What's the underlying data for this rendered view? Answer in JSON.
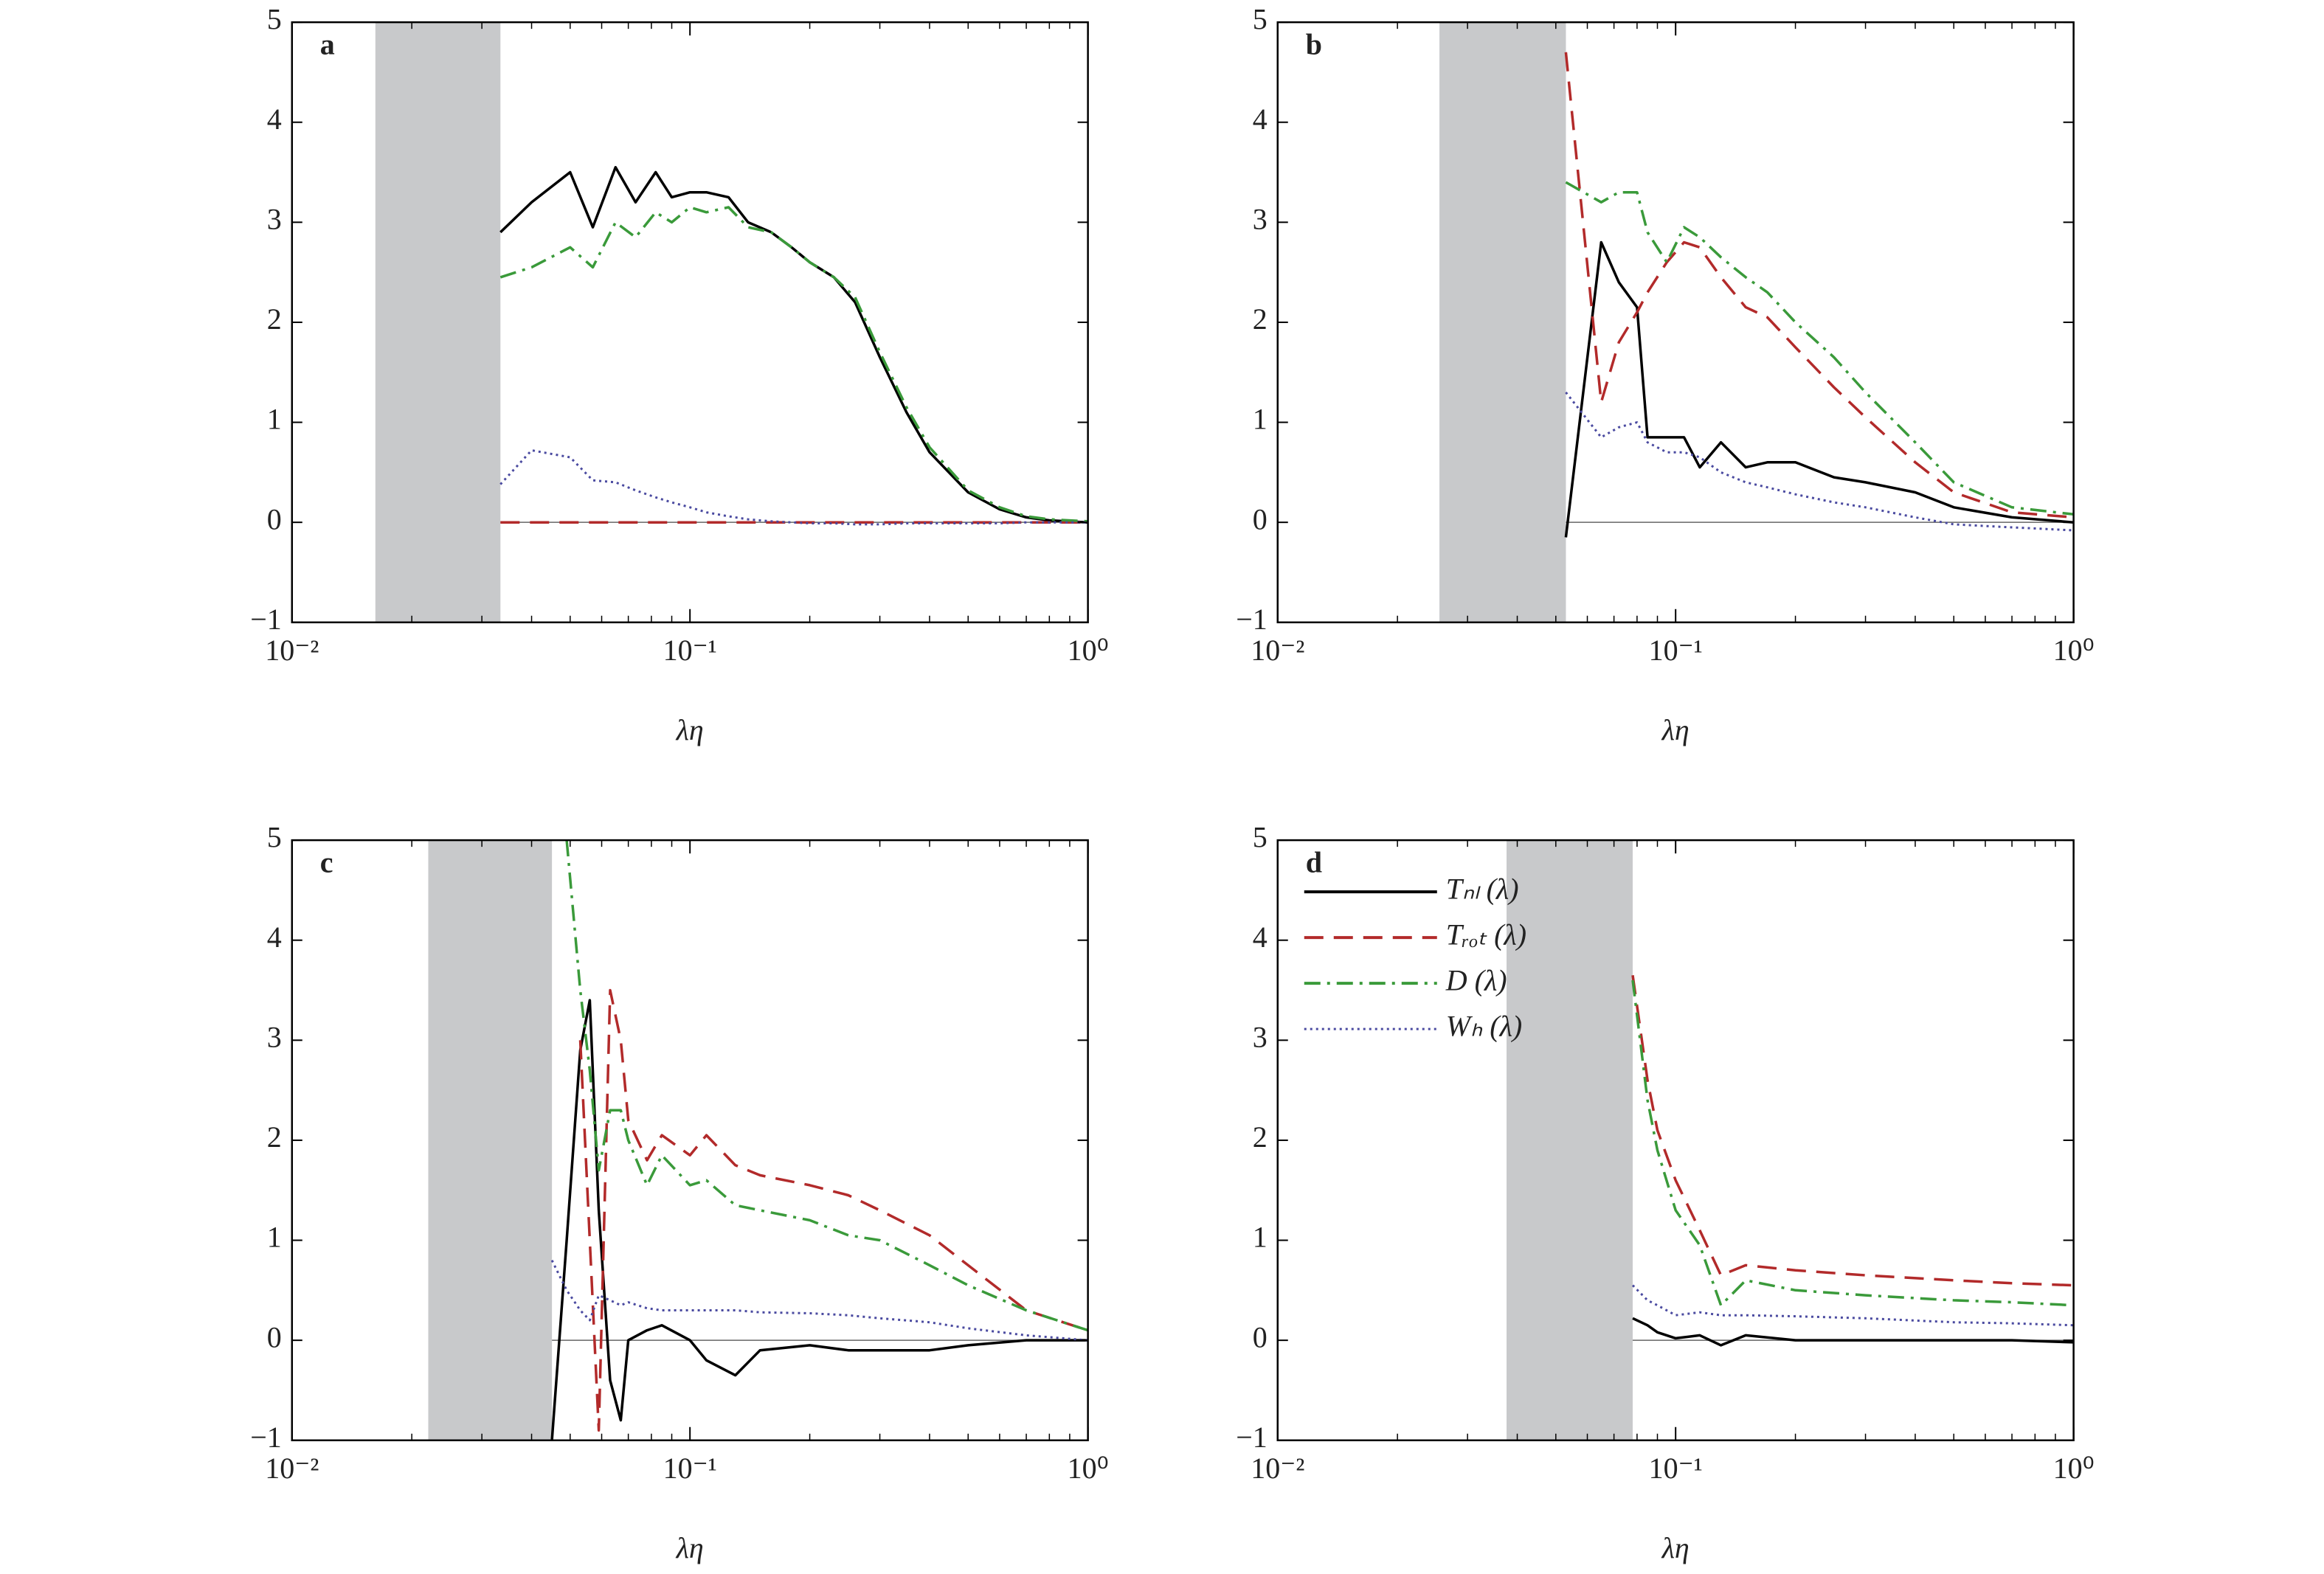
{
  "chart_data": [
    {
      "type": "line",
      "label": "a",
      "xlabel": "λη",
      "xscale": "log",
      "xlim": [
        0.01,
        1
      ],
      "ylim": [
        -1,
        5
      ],
      "xticks": [
        {
          "value": 0.01,
          "label": "10⁻²"
        },
        {
          "value": 0.1,
          "label": "10⁻¹"
        },
        {
          "value": 1,
          "label": "10⁰"
        }
      ],
      "yticks": [
        {
          "value": -1,
          "label": "−1"
        },
        0,
        1,
        2,
        3,
        4,
        5
      ],
      "shade": [
        0.0162,
        0.0334
      ],
      "hline": 0,
      "x": [
        0.0334,
        0.04,
        0.05,
        0.057,
        0.065,
        0.073,
        0.082,
        0.09,
        0.1,
        0.11,
        0.125,
        0.14,
        0.16,
        0.18,
        0.2,
        0.23,
        0.26,
        0.3,
        0.35,
        0.4,
        0.5,
        0.6,
        0.7,
        0.8,
        1.0
      ],
      "series": [
        {
          "color": "#000000",
          "style": "solid",
          "values": [
            2.9,
            3.2,
            3.5,
            2.95,
            3.55,
            3.2,
            3.5,
            3.25,
            3.3,
            3.3,
            3.25,
            3.0,
            2.9,
            2.75,
            2.6,
            2.45,
            2.2,
            1.65,
            1.1,
            0.7,
            0.3,
            0.13,
            0.05,
            0.02,
            0.0
          ]
        },
        {
          "color": "#b22a2a",
          "style": "dashed",
          "values": [
            0,
            0,
            0,
            0,
            0,
            0,
            0,
            0,
            0,
            0,
            0,
            0,
            0,
            0,
            0,
            0,
            0,
            0,
            0,
            0,
            0,
            0,
            0,
            0,
            0
          ]
        },
        {
          "color": "#3a9a3a",
          "style": "dashdot",
          "values": [
            2.45,
            2.55,
            2.75,
            2.55,
            3.0,
            2.85,
            3.1,
            3.0,
            3.15,
            3.1,
            3.15,
            2.95,
            2.9,
            2.75,
            2.6,
            2.45,
            2.25,
            1.7,
            1.15,
            0.75,
            0.32,
            0.15,
            0.06,
            0.03,
            0.01
          ]
        },
        {
          "color": "#4a4aa0",
          "style": "dotted",
          "values": [
            0.38,
            0.72,
            0.65,
            0.42,
            0.4,
            0.32,
            0.25,
            0.2,
            0.15,
            0.1,
            0.06,
            0.03,
            0.01,
            0,
            -0.01,
            -0.01,
            -0.02,
            -0.02,
            -0.01,
            -0.01,
            -0.01,
            -0.01,
            0,
            0,
            0
          ]
        }
      ]
    },
    {
      "type": "line",
      "label": "b",
      "xlabel": "λη",
      "xscale": "log",
      "xlim": [
        0.01,
        1
      ],
      "ylim": [
        -1,
        5
      ],
      "xticks": [
        {
          "value": 0.01,
          "label": "10⁻²"
        },
        {
          "value": 0.1,
          "label": "10⁻¹"
        },
        {
          "value": 1,
          "label": "10⁰"
        }
      ],
      "yticks": [
        {
          "value": -1,
          "label": "−1"
        },
        0,
        1,
        2,
        3,
        4,
        5
      ],
      "shade": [
        0.0255,
        0.053
      ],
      "hline": 0,
      "x": [
        0.053,
        0.065,
        0.072,
        0.08,
        0.085,
        0.095,
        0.105,
        0.115,
        0.13,
        0.15,
        0.17,
        0.2,
        0.25,
        0.3,
        0.4,
        0.5,
        0.7,
        1.0
      ],
      "series": [
        {
          "color": "#000000",
          "style": "solid",
          "values": [
            -0.15,
            2.8,
            2.4,
            2.15,
            0.85,
            0.85,
            0.85,
            0.55,
            0.8,
            0.55,
            0.6,
            0.6,
            0.45,
            0.4,
            0.3,
            0.15,
            0.05,
            0.0
          ]
        },
        {
          "color": "#b22a2a",
          "style": "dashed",
          "values": [
            4.7,
            1.2,
            1.8,
            2.1,
            2.3,
            2.6,
            2.8,
            2.75,
            2.45,
            2.15,
            2.05,
            1.75,
            1.35,
            1.05,
            0.6,
            0.3,
            0.1,
            0.05
          ]
        },
        {
          "color": "#3a9a3a",
          "style": "dashdot",
          "values": [
            3.4,
            3.2,
            3.3,
            3.3,
            2.9,
            2.6,
            2.95,
            2.85,
            2.65,
            2.45,
            2.3,
            2.0,
            1.65,
            1.3,
            0.8,
            0.4,
            0.15,
            0.08
          ]
        },
        {
          "color": "#4a4aa0",
          "style": "dotted",
          "values": [
            1.3,
            0.85,
            0.95,
            1.0,
            0.8,
            0.7,
            0.7,
            0.65,
            0.5,
            0.4,
            0.35,
            0.28,
            0.2,
            0.15,
            0.05,
            -0.02,
            -0.05,
            -0.08
          ]
        }
      ]
    },
    {
      "type": "line",
      "label": "c",
      "xlabel": "λη",
      "xscale": "log",
      "xlim": [
        0.01,
        1
      ],
      "ylim": [
        -1,
        5
      ],
      "xticks": [
        {
          "value": 0.01,
          "label": "10⁻²"
        },
        {
          "value": 0.1,
          "label": "10⁻¹"
        },
        {
          "value": 1,
          "label": "10⁰"
        }
      ],
      "yticks": [
        {
          "value": -1,
          "label": "−1"
        },
        0,
        1,
        2,
        3,
        4,
        5
      ],
      "shade": [
        0.022,
        0.045
      ],
      "hline": 0,
      "x": [
        0.045,
        0.049,
        0.053,
        0.056,
        0.059,
        0.063,
        0.067,
        0.07,
        0.078,
        0.085,
        0.1,
        0.11,
        0.13,
        0.15,
        0.2,
        0.25,
        0.3,
        0.4,
        0.5,
        0.7,
        1.0
      ],
      "series": [
        {
          "color": "#000000",
          "style": "solid",
          "values": [
            -1.0,
            1.0,
            2.9,
            3.4,
            1.3,
            -0.4,
            -0.8,
            0.0,
            0.1,
            0.15,
            0.0,
            -0.2,
            -0.35,
            -0.1,
            -0.05,
            -0.1,
            -0.1,
            -0.1,
            -0.05,
            0.0,
            0.0
          ]
        },
        {
          "color": "#b22a2a",
          "style": "dashed",
          "values": [
            null,
            null,
            3.0,
            1.0,
            -0.9,
            3.5,
            3.0,
            2.2,
            1.8,
            2.05,
            1.85,
            2.05,
            1.75,
            1.65,
            1.55,
            1.45,
            1.3,
            1.05,
            0.75,
            0.3,
            0.1
          ]
        },
        {
          "color": "#3a9a3a",
          "style": "dashdot",
          "values": [
            null,
            5.0,
            3.5,
            2.7,
            1.7,
            2.3,
            2.3,
            2.0,
            1.55,
            1.85,
            1.55,
            1.6,
            1.35,
            1.3,
            1.2,
            1.05,
            1.0,
            0.75,
            0.55,
            0.3,
            0.1
          ]
        },
        {
          "color": "#4a4aa0",
          "style": "dotted",
          "values": [
            0.8,
            0.5,
            0.3,
            0.2,
            0.45,
            0.4,
            0.35,
            0.38,
            0.32,
            0.3,
            0.3,
            0.3,
            0.3,
            0.28,
            0.27,
            0.25,
            0.22,
            0.18,
            0.12,
            0.05,
            0.0
          ]
        }
      ]
    },
    {
      "type": "line",
      "label": "d",
      "xlabel": "λη",
      "xscale": "log",
      "xlim": [
        0.01,
        1
      ],
      "ylim": [
        -1,
        5
      ],
      "xticks": [
        {
          "value": 0.01,
          "label": "10⁻²"
        },
        {
          "value": 0.1,
          "label": "10⁻¹"
        },
        {
          "value": 1,
          "label": "10⁰"
        }
      ],
      "yticks": [
        {
          "value": -1,
          "label": "−1"
        },
        0,
        1,
        2,
        3,
        4,
        5
      ],
      "shade": [
        0.0376,
        0.078
      ],
      "hline": 0,
      "legend": "upper left",
      "x": [
        0.078,
        0.085,
        0.09,
        0.1,
        0.115,
        0.13,
        0.15,
        0.2,
        0.3,
        0.5,
        0.7,
        1.0
      ],
      "series": [
        {
          "name": "Tₙₗ (λ)",
          "color": "#000000",
          "style": "solid",
          "values": [
            0.22,
            0.15,
            0.08,
            0.02,
            0.05,
            -0.05,
            0.05,
            0.0,
            0.0,
            0.0,
            0.0,
            -0.02
          ]
        },
        {
          "name": "Tᵣₒₜ (λ)",
          "color": "#b22a2a",
          "style": "dashed",
          "values": [
            3.65,
            2.6,
            2.1,
            1.6,
            1.1,
            0.65,
            0.75,
            0.7,
            0.65,
            0.6,
            0.57,
            0.55
          ]
        },
        {
          "name": "D (λ)",
          "color": "#3a9a3a",
          "style": "dashdot",
          "values": [
            3.6,
            2.4,
            1.9,
            1.3,
            0.95,
            0.35,
            0.6,
            0.5,
            0.45,
            0.4,
            0.38,
            0.35
          ]
        },
        {
          "name": "Wₕ (λ)",
          "color": "#4a4aa0",
          "style": "dotted",
          "values": [
            0.55,
            0.4,
            0.35,
            0.25,
            0.28,
            0.25,
            0.25,
            0.24,
            0.22,
            0.18,
            0.17,
            0.15
          ]
        }
      ]
    }
  ]
}
